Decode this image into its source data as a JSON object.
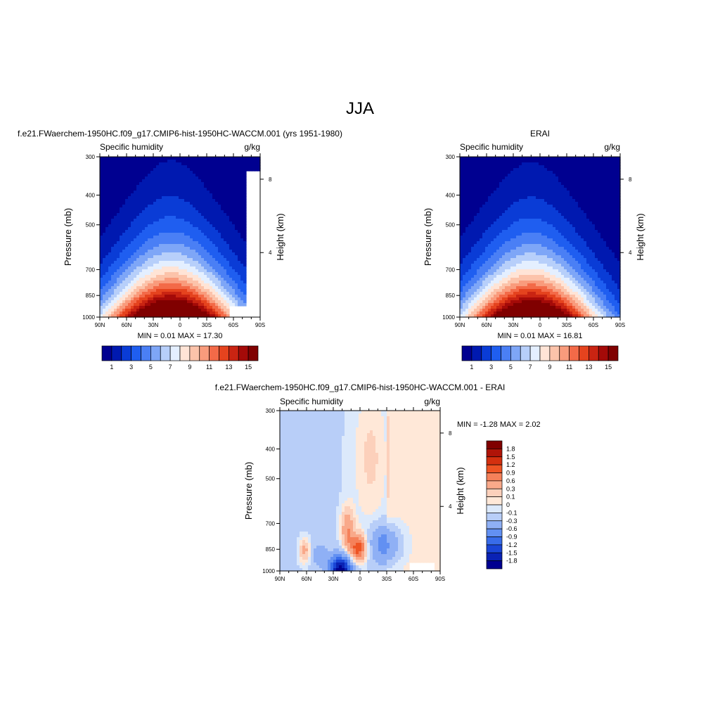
{
  "figure_title": "JJA",
  "chart_data": [
    {
      "type": "heatmap",
      "title": "f.e21.FWaerchem-1950HC.f09_g17.CMIP6-hist-1950HC-WACCM.001 (yrs 1951-1980)",
      "left_subtitle": "Specific humidity",
      "right_subtitle": "g/kg",
      "ylabel": "Pressure (mb)",
      "right_ylabel": "Height (km)",
      "x_tick_labels": [
        "90N",
        "60N",
        "30N",
        "0",
        "30S",
        "60S",
        "90S"
      ],
      "y_tick_labels": [
        "300",
        "400",
        "500",
        "700",
        "850",
        "1000"
      ],
      "y_ticks": [
        300,
        400,
        500,
        700,
        850,
        1000
      ],
      "right_tick_labels": [
        "8",
        "4"
      ],
      "xlim": [
        90,
        -90
      ],
      "ylim": [
        1000,
        300
      ],
      "log_y": true,
      "stats_text": "MIN =   0.01  MAX =  17.30",
      "min": 0.01,
      "max": 17.3,
      "colorbar": {
        "orientation": "horizontal",
        "labels": [
          "1",
          "3",
          "5",
          "7",
          "9",
          "11",
          "13",
          "15"
        ],
        "colors": [
          "#000090",
          "#0019b0",
          "#0a3cd6",
          "#1f5ef0",
          "#4a7ff5",
          "#7ea6f7",
          "#b7cffa",
          "#e4efff",
          "#ffe4d6",
          "#fcc3aa",
          "#f99b7c",
          "#f36a48",
          "#e5431e",
          "#c92412",
          "#a40a08",
          "#800000"
        ]
      },
      "field": {
        "kind": "humidity",
        "peak_lat": 10,
        "peak": 17.3,
        "south_cut": true
      }
    },
    {
      "type": "heatmap",
      "title": "ERAI",
      "left_subtitle": "Specific humidity",
      "right_subtitle": "g/kg",
      "ylabel": "Pressure (mb)",
      "right_ylabel": "Height (km)",
      "x_tick_labels": [
        "90N",
        "60N",
        "30N",
        "0",
        "30S",
        "60S",
        "90S"
      ],
      "y_tick_labels": [
        "300",
        "400",
        "500",
        "700",
        "850",
        "1000"
      ],
      "y_ticks": [
        300,
        400,
        500,
        700,
        850,
        1000
      ],
      "right_tick_labels": [
        "8",
        "4"
      ],
      "xlim": [
        90,
        -90
      ],
      "ylim": [
        1000,
        300
      ],
      "log_y": true,
      "stats_text": "MIN =   0.01  MAX =  16.81",
      "min": 0.01,
      "max": 16.81,
      "colorbar": {
        "orientation": "horizontal",
        "labels": [
          "1",
          "3",
          "5",
          "7",
          "9",
          "11",
          "13",
          "15"
        ],
        "colors": [
          "#000090",
          "#0019b0",
          "#0a3cd6",
          "#1f5ef0",
          "#4a7ff5",
          "#7ea6f7",
          "#b7cffa",
          "#e4efff",
          "#ffe4d6",
          "#fcc3aa",
          "#f99b7c",
          "#f36a48",
          "#e5431e",
          "#c92412",
          "#a40a08",
          "#800000"
        ]
      },
      "field": {
        "kind": "humidity",
        "peak_lat": 10,
        "peak": 16.81,
        "south_cut": false
      }
    },
    {
      "type": "heatmap",
      "title": "f.e21.FWaerchem-1950HC.f09_g17.CMIP6-hist-1950HC-WACCM.001 - ERAI",
      "left_subtitle": "Specific humidity",
      "right_subtitle": "g/kg",
      "ylabel": "Pressure (mb)",
      "right_ylabel": "Height (km)",
      "x_tick_labels": [
        "90N",
        "60N",
        "30N",
        "0",
        "30S",
        "60S",
        "90S"
      ],
      "y_tick_labels": [
        "300",
        "400",
        "500",
        "700",
        "850",
        "1000"
      ],
      "y_ticks": [
        300,
        400,
        500,
        700,
        850,
        1000
      ],
      "right_tick_labels": [
        "8",
        "4"
      ],
      "xlim": [
        90,
        -90
      ],
      "ylim": [
        1000,
        300
      ],
      "log_y": true,
      "stats_text": "MIN =  -1.28  MAX =   2.02",
      "min": -1.28,
      "max": 2.02,
      "colorbar": {
        "orientation": "vertical",
        "labels": [
          "1.8",
          "1.5",
          "1.2",
          "0.9",
          "0.6",
          "0.3",
          "0.1",
          "0",
          "-0.1",
          "-0.3",
          "-0.6",
          "-0.9",
          "-1.2",
          "-1.5",
          "-1.8"
        ],
        "colors": [
          "#800000",
          "#b01408",
          "#d4300f",
          "#ee5424",
          "#f5815a",
          "#f9a98a",
          "#fcd0bb",
          "#ffe8d8",
          "#dce9fb",
          "#b8cef8",
          "#8fb0f5",
          "#6290f2",
          "#386ce9",
          "#1a45d6",
          "#0a22b4",
          "#000090"
        ]
      },
      "field": {
        "kind": "difference"
      }
    }
  ]
}
